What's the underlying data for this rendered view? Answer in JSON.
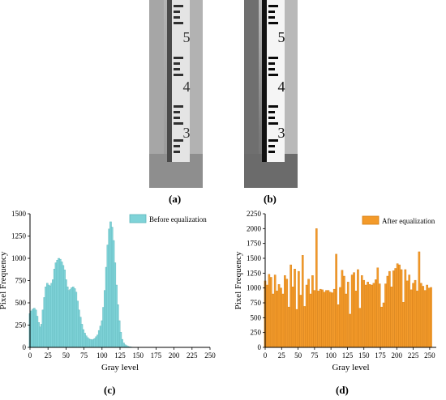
{
  "figure": {
    "panel_a_label": "(a)",
    "panel_b_label": "(b)",
    "panel_c_label": "(c)",
    "panel_d_label": "(d)"
  },
  "photos": {
    "a": {
      "gauge_numbers": [
        "5",
        "4",
        "3"
      ],
      "tone": "low-contrast grayscale"
    },
    "b": {
      "gauge_numbers": [
        "5",
        "4",
        "3"
      ],
      "tone": "high-contrast grayscale"
    }
  },
  "chart_data": [
    {
      "type": "bar",
      "ylabel": "Pixel Frequency",
      "xlabel": "Gray level",
      "legend": "Before equalization",
      "legend_position": "top-right",
      "color": "#7fd3d8",
      "edge_color": "#5fb6bb",
      "xlim": [
        0,
        250
      ],
      "ylim": [
        0,
        1500
      ],
      "xticks": [
        "0",
        "25",
        "50",
        "75",
        "100",
        "125",
        "150",
        "175",
        "200",
        "225",
        "250"
      ],
      "yticks": [
        "0",
        "250",
        "500",
        "750",
        "1000",
        "1250",
        "1500"
      ],
      "x": [
        0,
        2,
        4,
        6,
        8,
        10,
        12,
        14,
        16,
        18,
        20,
        22,
        24,
        26,
        28,
        30,
        32,
        34,
        36,
        38,
        40,
        42,
        44,
        46,
        48,
        50,
        52,
        54,
        56,
        58,
        60,
        62,
        64,
        66,
        68,
        70,
        72,
        74,
        76,
        78,
        80,
        82,
        84,
        86,
        88,
        90,
        92,
        94,
        96,
        98,
        100,
        102,
        104,
        106,
        108,
        110,
        112,
        114,
        116,
        118,
        120,
        122,
        124,
        126,
        128,
        130,
        132,
        134,
        136,
        138,
        140,
        142,
        144
      ],
      "values": [
        380,
        410,
        430,
        440,
        420,
        350,
        280,
        230,
        260,
        420,
        560,
        680,
        720,
        700,
        690,
        720,
        760,
        880,
        950,
        980,
        1000,
        990,
        960,
        920,
        870,
        760,
        680,
        640,
        650,
        670,
        680,
        660,
        620,
        520,
        420,
        340,
        260,
        200,
        160,
        130,
        110,
        95,
        90,
        85,
        90,
        100,
        120,
        140,
        190,
        240,
        300,
        450,
        640,
        900,
        1150,
        1330,
        1410,
        1350,
        1200,
        950,
        700,
        480,
        300,
        170,
        90,
        50,
        30,
        20,
        12,
        8,
        5,
        3,
        2
      ]
    },
    {
      "type": "bar",
      "ylabel": "Pixel Frequency",
      "xlabel": "Gray level",
      "legend": "After equalization",
      "legend_position": "top-right",
      "color": "#f39a2a",
      "edge_color": "#d47c10",
      "xlim": [
        0,
        260
      ],
      "ylim": [
        0,
        2250
      ],
      "xticks": [
        "0",
        "25",
        "50",
        "75",
        "100",
        "125",
        "150",
        "175",
        "200",
        "225",
        "250"
      ],
      "yticks": [
        "0",
        "250",
        "500",
        "750",
        "1000",
        "1250",
        "1500",
        "1750",
        "2000",
        "2250"
      ],
      "x": [
        0,
        3,
        6,
        9,
        12,
        15,
        18,
        21,
        24,
        27,
        30,
        33,
        36,
        39,
        42,
        45,
        48,
        51,
        54,
        57,
        60,
        63,
        66,
        69,
        72,
        75,
        78,
        81,
        84,
        87,
        90,
        93,
        96,
        99,
        102,
        105,
        108,
        111,
        114,
        117,
        120,
        123,
        126,
        129,
        132,
        135,
        138,
        141,
        144,
        147,
        150,
        153,
        156,
        159,
        162,
        165,
        168,
        171,
        174,
        177,
        180,
        183,
        186,
        189,
        192,
        195,
        198,
        201,
        204,
        207,
        210,
        213,
        216,
        219,
        222,
        225,
        228,
        231,
        234,
        237,
        240,
        243,
        246,
        249,
        252
      ],
      "values": [
        1120,
        1050,
        1230,
        1180,
        900,
        1220,
        950,
        1060,
        1000,
        900,
        1210,
        1150,
        680,
        1390,
        1020,
        1320,
        640,
        1280,
        880,
        1550,
        690,
        1050,
        1150,
        900,
        1210,
        960,
        2000,
        950,
        980,
        970,
        930,
        960,
        960,
        930,
        920,
        980,
        1570,
        720,
        1010,
        1300,
        1200,
        900,
        1100,
        560,
        1220,
        1260,
        950,
        1310,
        660,
        1210,
        1130,
        1050,
        1100,
        1060,
        1050,
        1080,
        1140,
        1340,
        1070,
        680,
        750,
        1070,
        1200,
        1280,
        1020,
        1290,
        1330,
        1410,
        1390,
        1310,
        760,
        1310,
        1120,
        1220,
        970,
        1080,
        1130,
        950,
        1610,
        1080,
        1030,
        960,
        1050,
        1000,
        1010
      ]
    }
  ]
}
